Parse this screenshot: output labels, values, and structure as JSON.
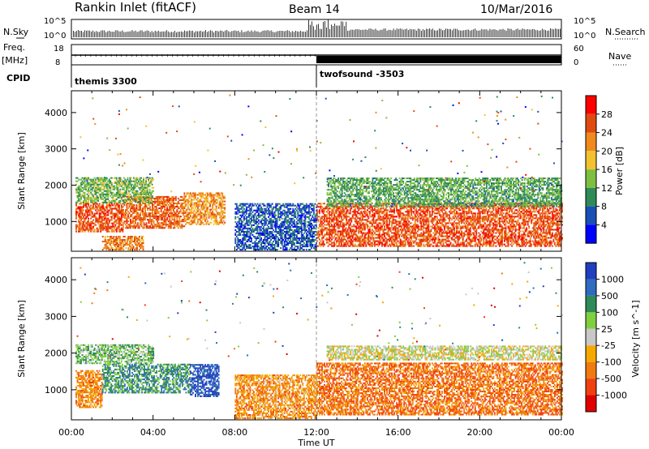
{
  "header": {
    "station": "Rankin Inlet (fitACF)",
    "beam": "Beam 14",
    "date": "10/Mar/2016"
  },
  "top_panels": {
    "nsky_label": "N.Sky",
    "nsky_ticks": [
      "10^5",
      "10^0"
    ],
    "nsearch_label": "N.Search",
    "nsearch_ticks": [
      "10^5",
      "10^0"
    ],
    "freq_label": "Freq.",
    "freq_unit": "[MHz]",
    "freq_ticks": [
      "18",
      "8"
    ],
    "nave_label": "Nave",
    "nave_ticks": [
      "60",
      "0"
    ],
    "cpid_label": "CPID",
    "cpid_modes": [
      {
        "name": "themis 3300",
        "start_hour": 0
      },
      {
        "name": "twofsound -3503",
        "start_hour": 12
      }
    ]
  },
  "chart_data": [
    {
      "type": "heatmap",
      "title": "",
      "xlabel": "",
      "ylabel": "Slant Range [km]",
      "x_ticks": [
        "00:00",
        "04:00",
        "08:00",
        "12:00",
        "16:00",
        "20:00",
        "00:00"
      ],
      "xlim_hours": [
        0,
        24
      ],
      "y_ticks": [
        "1000",
        "2000",
        "3000",
        "4000"
      ],
      "ylim": [
        180,
        4600
      ],
      "colorbar": {
        "label": "Power [dB]",
        "ticks": [
          "4",
          "8",
          "12",
          "16",
          "20",
          "24",
          "28"
        ],
        "range": [
          0,
          30
        ],
        "colors": [
          "#0000ff",
          "#1a4fb5",
          "#2e8b57",
          "#7fbf3f",
          "#f2c230",
          "#f08a1e",
          "#e04a10",
          "#ff0000"
        ]
      },
      "regions": [
        {
          "t0": 0.2,
          "t1": 2.5,
          "r0": 700,
          "r1": 1500,
          "level": 0.85
        },
        {
          "t0": 2.5,
          "t1": 5.5,
          "r0": 800,
          "r1": 1700,
          "level": 0.8
        },
        {
          "t0": 5.5,
          "t1": 7.5,
          "r0": 900,
          "r1": 1800,
          "level": 0.7
        },
        {
          "t0": 0.2,
          "t1": 4.0,
          "r0": 1500,
          "r1": 2200,
          "level": 0.4
        },
        {
          "t0": 1.5,
          "t1": 3.5,
          "r0": 200,
          "r1": 600,
          "level": 0.75
        },
        {
          "t0": 12.0,
          "t1": 24.0,
          "r0": 300,
          "r1": 1500,
          "level": 0.85
        },
        {
          "t0": 12.5,
          "t1": 24.0,
          "r0": 1400,
          "r1": 2200,
          "level": 0.35
        },
        {
          "t0": 8.0,
          "t1": 12.0,
          "r0": 200,
          "r1": 1500,
          "level": 0.15
        }
      ]
    },
    {
      "type": "heatmap",
      "title": "",
      "xlabel": "Time UT",
      "ylabel": "Slant Range [km]",
      "x_ticks": [
        "00:00",
        "04:00",
        "08:00",
        "12:00",
        "16:00",
        "20:00",
        "00:00"
      ],
      "xlim_hours": [
        0,
        24
      ],
      "y_ticks": [
        "1000",
        "2000",
        "3000",
        "4000"
      ],
      "ylim": [
        180,
        4600
      ],
      "colorbar": {
        "label": "Velocity [m s^-1]",
        "ticks": [
          "1000",
          "500",
          "100",
          "25",
          "-25",
          "-100",
          "-500",
          "-1000"
        ],
        "colors": [
          "#1f3fbf",
          "#2f6bbf",
          "#2e8b57",
          "#7fcf3f",
          "#c8c8c8",
          "#f5a800",
          "#f07a10",
          "#f04010",
          "#e00000"
        ]
      },
      "regions": [
        {
          "t0": 0.2,
          "t1": 1.5,
          "r0": 500,
          "r1": 1500,
          "level": 0.72
        },
        {
          "t0": 1.5,
          "t1": 5.8,
          "r0": 900,
          "r1": 1700,
          "level": 0.25
        },
        {
          "t0": 5.8,
          "t1": 7.2,
          "r0": 800,
          "r1": 1700,
          "level": 0.05
        },
        {
          "t0": 0.2,
          "t1": 4.0,
          "r0": 1700,
          "r1": 2200,
          "level": 0.35
        },
        {
          "t0": 12.0,
          "t1": 24.0,
          "r0": 300,
          "r1": 1700,
          "level": 0.78
        },
        {
          "t0": 12.5,
          "t1": 24.0,
          "r0": 1800,
          "r1": 2200,
          "level": 0.5
        },
        {
          "t0": 8.0,
          "t1": 12.0,
          "r0": 200,
          "r1": 1400,
          "level": 0.7
        }
      ]
    }
  ]
}
